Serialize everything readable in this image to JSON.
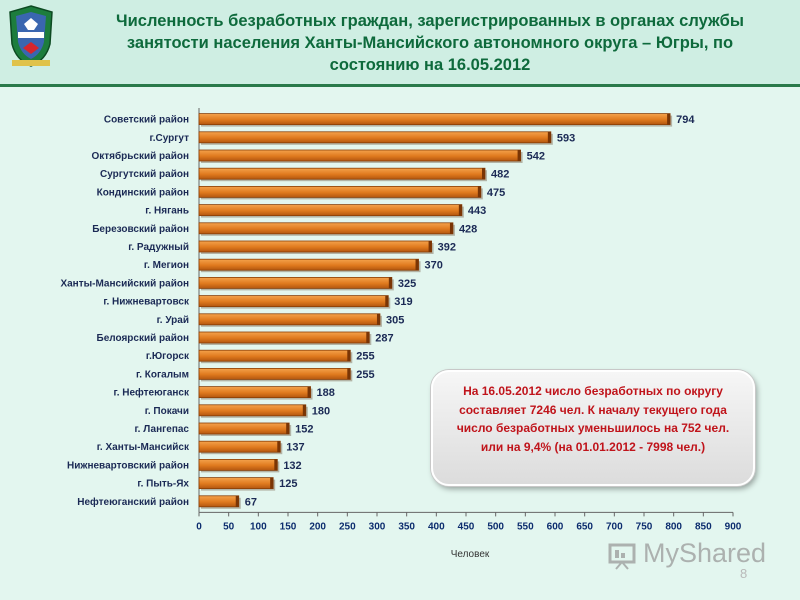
{
  "title": "Численность безработных граждан, зарегистрированных в органах службы занятости населения Ханты-Мансийского автономного округа – Югры, по состоянию на 16.05.2012",
  "colors": {
    "bar": "#e07a1e",
    "bar_dark": "#a34a08",
    "header_bg": "#cfeee3",
    "title": "#0e6a3c",
    "callout_text": "#c0141b"
  },
  "callout": {
    "text": "На 16.05.2012 число безработных по округу составляет 7246 чел. К началу текущего года число безработных уменьшилось на 752 чел. или на 9,4% (на 01.01.2012 - 7998 чел.)"
  },
  "watermark": "MyShared",
  "page_number": "8",
  "chart_data": {
    "type": "bar",
    "orientation": "horizontal",
    "categories": [
      "Советский район",
      "г.Сургут",
      "Октябрьский район",
      "Сургутский район",
      "Кондинский район",
      "г. Нягань",
      "Березовский район",
      "г. Радужный",
      "г. Мегион",
      "Ханты-Мансийский район",
      "г. Нижневартовск",
      "г. Урай",
      "Белоярский район",
      "г.Югорск",
      "г. Когалым",
      "г. Нефтеюганск",
      "г. Покачи",
      "г. Лангепас",
      "г. Ханты-Мансийск",
      "Нижневартовский район",
      "г. Пыть-Ях",
      "Нефтеюганский район"
    ],
    "values": [
      794,
      593,
      542,
      482,
      475,
      443,
      428,
      392,
      370,
      325,
      319,
      305,
      287,
      255,
      255,
      188,
      180,
      152,
      137,
      132,
      125,
      67
    ],
    "xlabel": "Человек",
    "xlim": [
      0,
      900
    ],
    "xticks": [
      0,
      50,
      100,
      150,
      200,
      250,
      300,
      350,
      400,
      450,
      500,
      550,
      600,
      650,
      700,
      750,
      800,
      850,
      900
    ],
    "grid": false,
    "legend": "none"
  }
}
